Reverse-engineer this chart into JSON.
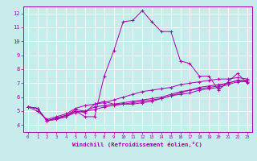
{
  "title": "",
  "xlabel": "Windchill (Refroidissement éolien,°C)",
  "ylabel": "",
  "background_color": "#c8ecec",
  "grid_color": "#ffffff",
  "line_color": "#aa00aa",
  "xlim": [
    -0.5,
    23.5
  ],
  "ylim": [
    3.5,
    12.5
  ],
  "xticks": [
    0,
    1,
    2,
    3,
    4,
    5,
    6,
    7,
    8,
    9,
    10,
    11,
    12,
    13,
    14,
    15,
    16,
    17,
    18,
    19,
    20,
    21,
    22,
    23
  ],
  "yticks": [
    4,
    5,
    6,
    7,
    8,
    9,
    10,
    11,
    12
  ],
  "series": [
    [
      5.3,
      5.2,
      4.3,
      4.4,
      4.6,
      5.0,
      4.6,
      4.6,
      7.5,
      9.3,
      11.4,
      11.5,
      12.2,
      11.4,
      10.7,
      10.7,
      8.6,
      8.4,
      7.5,
      7.5,
      6.5,
      7.1,
      7.7,
      7.0
    ],
    [
      5.3,
      5.2,
      4.3,
      4.5,
      4.7,
      5.0,
      4.9,
      5.5,
      5.7,
      5.5,
      5.5,
      5.5,
      5.6,
      5.7,
      5.9,
      6.1,
      6.3,
      6.5,
      6.6,
      6.7,
      6.8,
      7.0,
      7.2,
      7.2
    ],
    [
      5.3,
      5.2,
      4.3,
      4.5,
      4.6,
      4.9,
      5.0,
      5.1,
      5.3,
      5.4,
      5.5,
      5.6,
      5.7,
      5.8,
      5.9,
      6.1,
      6.2,
      6.3,
      6.5,
      6.6,
      6.7,
      6.9,
      7.1,
      7.1
    ],
    [
      5.3,
      5.2,
      4.3,
      4.5,
      4.7,
      5.1,
      5.0,
      5.3,
      5.4,
      5.5,
      5.6,
      5.7,
      5.8,
      5.9,
      6.0,
      6.2,
      6.4,
      6.5,
      6.7,
      6.8,
      6.9,
      7.0,
      7.2,
      7.2
    ],
    [
      5.3,
      5.0,
      4.4,
      4.6,
      4.8,
      5.2,
      5.4,
      5.5,
      5.6,
      5.8,
      6.0,
      6.2,
      6.4,
      6.5,
      6.6,
      6.7,
      6.9,
      7.0,
      7.1,
      7.2,
      7.3,
      7.3,
      7.4,
      7.3
    ]
  ]
}
